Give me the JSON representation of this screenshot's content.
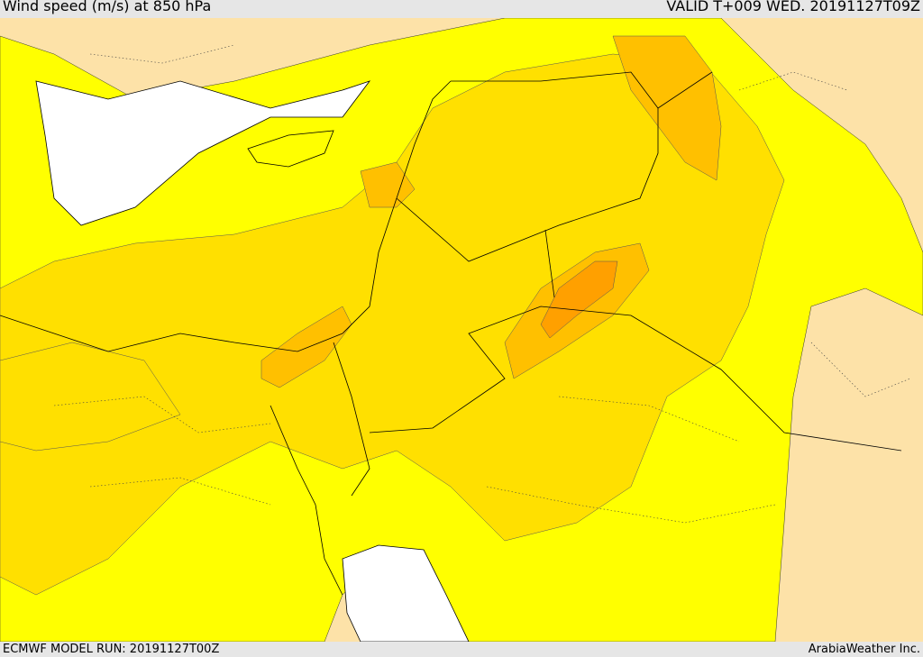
{
  "header": {
    "title": "Wind speed (m/s) at 850 hPa",
    "valid": "VALID T+009 WED. 20191127T09Z"
  },
  "footer": {
    "model_run": "ECMWF MODEL RUN: 20191127T00Z",
    "credit": "ArabiaWeather Inc."
  },
  "colors": {
    "sea": "#ffffff",
    "land_calm": "#fde2a8",
    "band_1": "#ffff00",
    "band_2": "#ffe000",
    "band_3": "#ffc000",
    "band_4": "#ffa000",
    "borders": "#000000"
  }
}
